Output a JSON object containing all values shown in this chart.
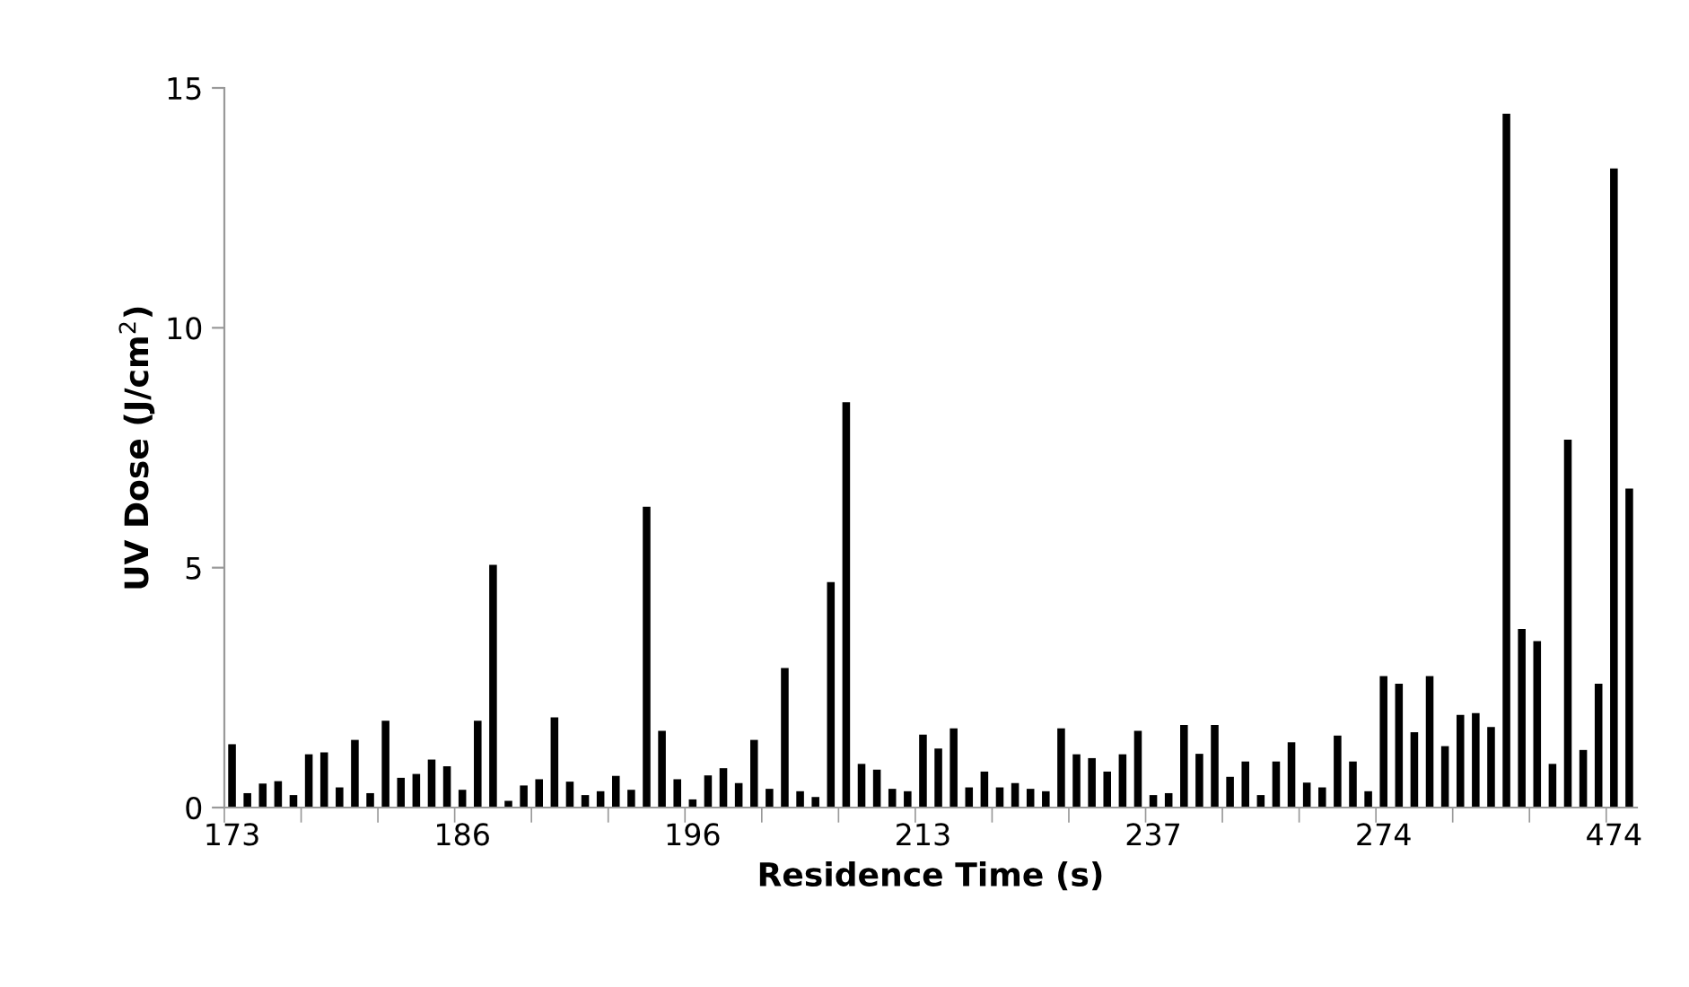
{
  "chart_data": {
    "type": "bar",
    "xlabel": "Residence Time (s)",
    "ylabel": "UV Dose (J/cm$^{2}$)",
    "categories": [
      "173",
      null,
      null,
      null,
      null,
      null,
      null,
      null,
      null,
      null,
      null,
      null,
      null,
      null,
      null,
      "186",
      null,
      null,
      null,
      null,
      null,
      null,
      null,
      null,
      null,
      null,
      null,
      null,
      null,
      null,
      "196",
      null,
      null,
      null,
      null,
      null,
      null,
      null,
      null,
      null,
      null,
      null,
      null,
      null,
      null,
      "213",
      null,
      null,
      null,
      null,
      null,
      null,
      null,
      null,
      null,
      null,
      null,
      null,
      null,
      null,
      "237",
      null,
      null,
      null,
      null,
      null,
      null,
      null,
      null,
      null,
      null,
      null,
      null,
      null,
      null,
      "274",
      null,
      null,
      null,
      null,
      null,
      null,
      null,
      null,
      null,
      null,
      null,
      null,
      null,
      null,
      "474",
      null
    ],
    "values": [
      1.32,
      0.3,
      0.5,
      0.55,
      0.26,
      1.11,
      1.15,
      0.42,
      1.41,
      0.3,
      1.81,
      0.62,
      0.7,
      1.0,
      0.86,
      0.37,
      1.81,
      5.06,
      0.14,
      0.46,
      0.59,
      1.88,
      0.54,
      0.26,
      0.34,
      0.66,
      0.37,
      6.27,
      1.6,
      0.59,
      0.17,
      0.67,
      0.82,
      0.51,
      1.41,
      0.39,
      2.91,
      0.34,
      0.22,
      4.7,
      8.45,
      0.91,
      0.79,
      0.39,
      0.34,
      1.52,
      1.23,
      1.65,
      0.42,
      0.75,
      0.42,
      0.51,
      0.39,
      0.34,
      1.65,
      1.11,
      1.03,
      0.75,
      1.11,
      1.6,
      0.26,
      0.3,
      1.72,
      1.12,
      1.72,
      0.64,
      0.96,
      0.26,
      0.96,
      1.36,
      0.52,
      0.42,
      1.5,
      0.96,
      0.34,
      2.74,
      2.58,
      1.57,
      2.74,
      1.28,
      1.93,
      1.97,
      1.68,
      14.46,
      3.72,
      3.47,
      0.91,
      7.67,
      1.2,
      2.58,
      13.32,
      6.65
    ],
    "color": "#000000",
    "ylim": [
      0,
      15
    ],
    "yticks": [
      0,
      5,
      10,
      15
    ],
    "grid": false,
    "legend": false
  }
}
